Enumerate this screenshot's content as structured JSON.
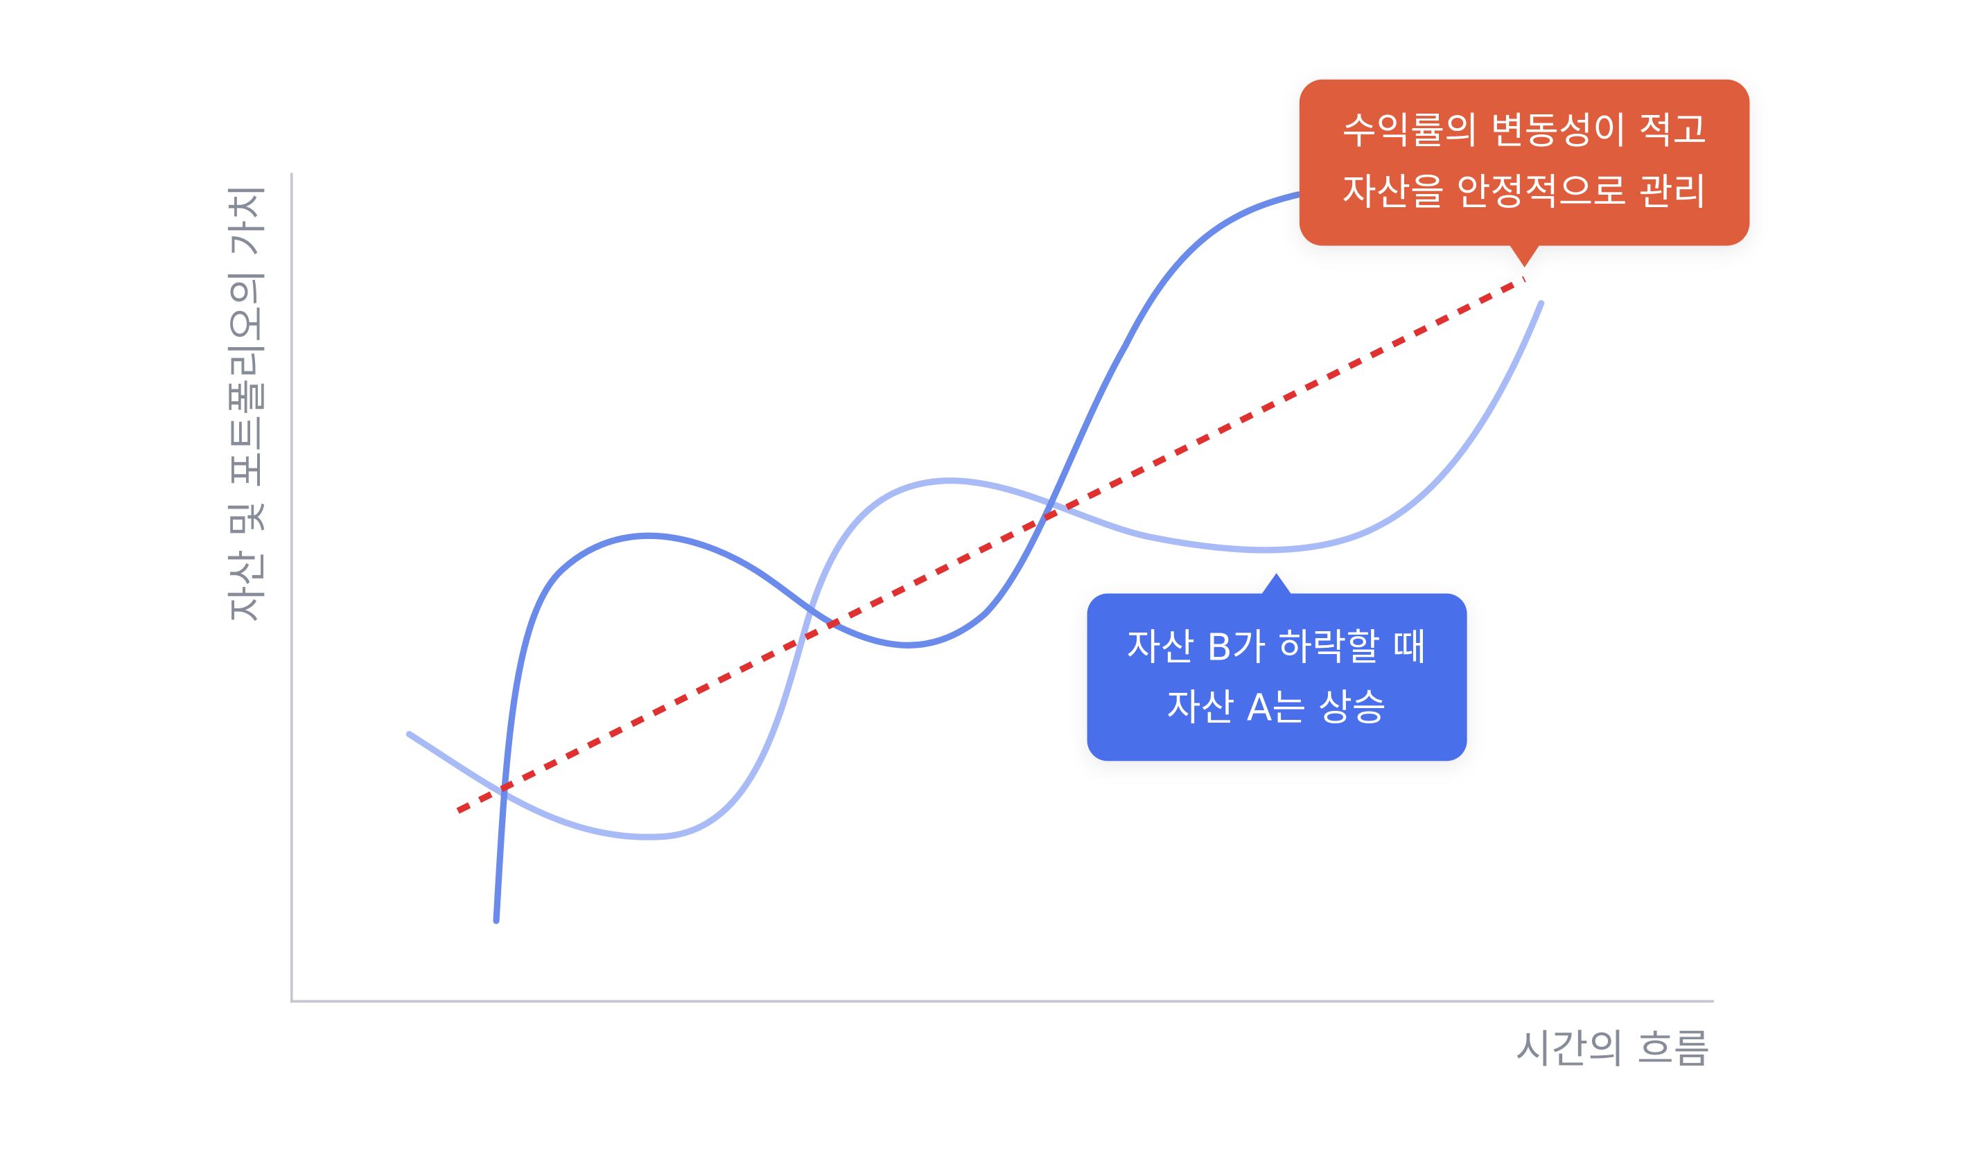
{
  "axes": {
    "y_label": "자산 및 포트폴리오의 가치",
    "x_label": "시간의 흐름"
  },
  "callouts": {
    "stable": {
      "lines": [
        "수익률의 변동성이 적고",
        "자산을 안정적으로 관리"
      ],
      "color": "#de5d3c"
    },
    "asset_b": {
      "lines": [
        "자산 B가 하락할 때",
        "자산 A는 상승"
      ],
      "color": "#4a6fea"
    }
  },
  "colors": {
    "axis": "#c4c7d2",
    "asset_a_curve": "#6a8bea",
    "asset_b_curve": "#a8bbf7",
    "portfolio_trend": "#e03131"
  }
}
